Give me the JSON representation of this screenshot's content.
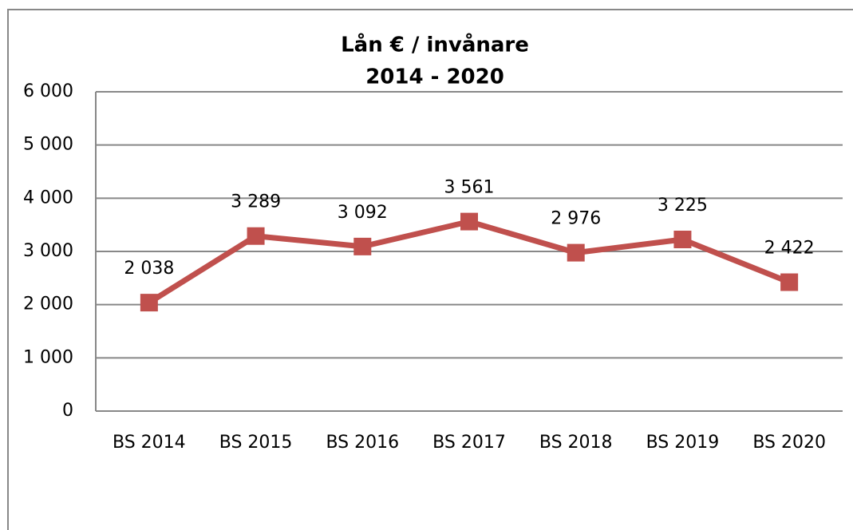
{
  "chart_data": {
    "type": "line",
    "title": "Lån € / invånare",
    "subtitle": "2014 - 2020",
    "categories": [
      "BS 2014",
      "BS 2015",
      "BS 2016",
      "BS 2017",
      "BS 2018",
      "BS 2019",
      "BS 2020"
    ],
    "series": [
      {
        "name": "Lån € / invånare",
        "color": "#c0504d",
        "values": [
          2038,
          3289,
          3092,
          3561,
          2976,
          3225,
          2422
        ],
        "value_labels": [
          "2 038",
          "3 289",
          "3 092",
          "3 561",
          "2 976",
          "3 225",
          "2 422"
        ]
      }
    ],
    "ylim": [
      0,
      6000
    ],
    "yticks": [
      0,
      {
        "value": 1000,
        "label": "1 000"
      },
      {
        "value": 2000,
        "label": "2 000"
      },
      {
        "value": 3000,
        "label": "3 000"
      },
      {
        "value": 4000,
        "label": "4 000"
      },
      {
        "value": 5000,
        "label": "5 000"
      },
      {
        "value": 6000,
        "label": "6 000"
      }
    ],
    "grid": true
  }
}
